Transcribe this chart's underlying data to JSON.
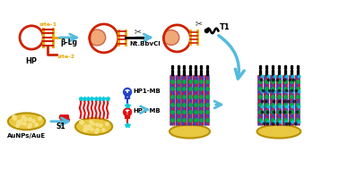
{
  "bg_color": "#ffffff",
  "arrow_blue": "#55bbdd",
  "red": "#cc2200",
  "gold": "#e8a800",
  "gold_dark": "#b89000",
  "gold_fill": "#e8c840",
  "protein_fill": "#f0a878",
  "protein_edge": "#cc6644",
  "dna_red": "#dd1111",
  "dna_blue": "#2244cc",
  "dna_green": "#00aa44",
  "dna_black": "#111111",
  "cyan_star": "#00ccdd",
  "figsize": [
    3.78,
    1.89
  ],
  "dpi": 100,
  "labels": {
    "site1": "site-1",
    "site2": "site-2",
    "HP": "HP",
    "beta_lg": "β-Lg",
    "nt_bbvci": "Nt.BbvCI",
    "T1": "T1",
    "AuNPs": "AuNPs/AuE",
    "S1": "S1",
    "HP1_MB": "HP1-MB",
    "HP2_MB": "HP2-MB"
  }
}
